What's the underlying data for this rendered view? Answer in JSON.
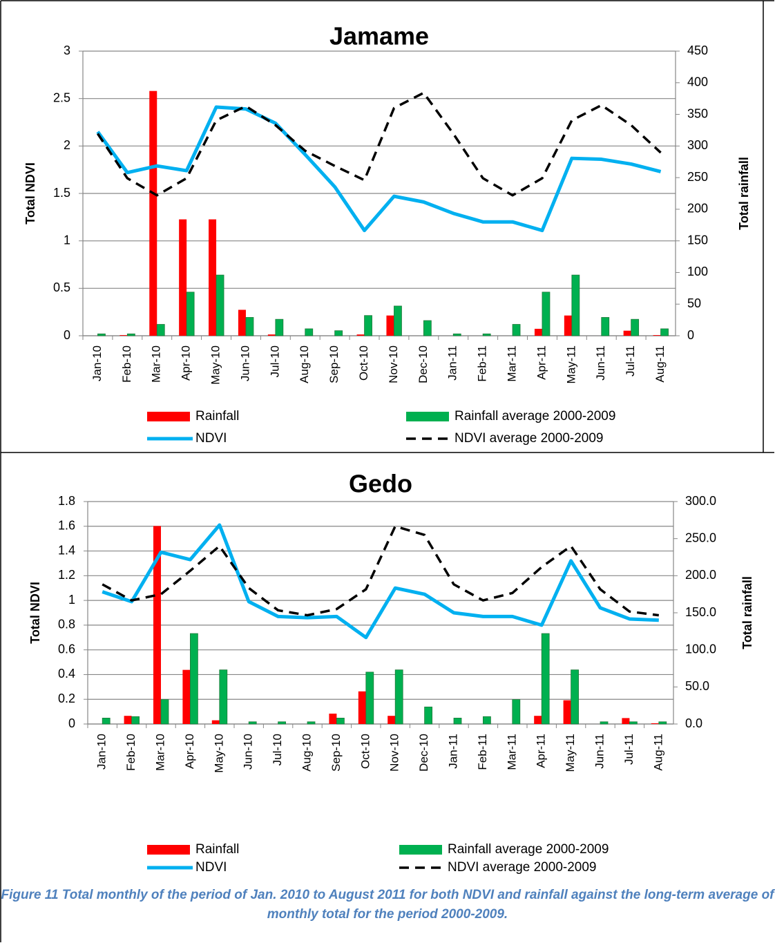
{
  "chart_data": [
    {
      "type": "combo",
      "title": "Jamame",
      "ylabel": "Total NDVI",
      "y2label": "Total rainfall",
      "categories": [
        "Jan-10",
        "Feb-10",
        "Mar-10",
        "Apr-10",
        "May-10",
        "Jun-10",
        "Jul-10",
        "Aug-10",
        "Sep-10",
        "Oct-10",
        "Nov-10",
        "Dec-10",
        "Jan-11",
        "Feb-11",
        "Mar-11",
        "Apr-11",
        "May-11",
        "Jun-11",
        "Jul-11",
        "Aug-11"
      ],
      "ylim": [
        0,
        3
      ],
      "yticks": [
        0,
        0.5,
        1,
        1.5,
        2,
        2.5,
        3
      ],
      "y2lim": [
        0,
        450
      ],
      "y2ticks": [
        0,
        50,
        100,
        150,
        200,
        250,
        300,
        350,
        400,
        450
      ],
      "grid": true,
      "series": [
        {
          "name": "Rainfall",
          "type": "bar",
          "axis": "y2",
          "color": "#ff0000",
          "values": [
            0,
            1,
            387,
            184,
            184,
            41,
            2,
            0,
            0,
            2,
            32,
            0,
            0,
            0,
            0,
            11,
            32,
            0,
            8,
            1
          ]
        },
        {
          "name": "Rainfall average 2000-2009",
          "type": "bar",
          "axis": "y2",
          "color": "#00b050",
          "values": [
            3,
            3,
            18,
            69,
            96,
            29,
            26,
            11,
            8,
            32,
            47,
            24,
            3,
            3,
            18,
            69,
            96,
            29,
            26,
            11
          ]
        },
        {
          "name": "NDVI",
          "type": "line",
          "color": "#00b0f0",
          "values": [
            2.15,
            1.72,
            1.79,
            1.74,
            2.41,
            2.39,
            2.24,
            1.91,
            1.57,
            1.11,
            1.47,
            1.41,
            1.29,
            1.2,
            1.2,
            1.11,
            1.87,
            1.86,
            1.81,
            1.73
          ]
        },
        {
          "name": "NDVI average 2000-2009",
          "type": "line",
          "dash": true,
          "color": "#000000",
          "values": [
            2.13,
            1.66,
            1.48,
            1.66,
            2.27,
            2.42,
            2.22,
            1.95,
            1.79,
            1.64,
            2.4,
            2.56,
            2.13,
            1.66,
            1.48,
            1.66,
            2.27,
            2.43,
            2.22,
            1.93
          ]
        }
      ]
    },
    {
      "type": "combo",
      "title": "Gedo",
      "ylabel": "Total NDVI",
      "y2label": "Total rainfall",
      "categories": [
        "Jan-10",
        "Feb-10",
        "Mar-10",
        "Apr-10",
        "May-10",
        "Jun-10",
        "Jul-10",
        "Aug-10",
        "Sep-10",
        "Oct-10",
        "Nov-10",
        "Dec-10",
        "Jan-11",
        "Feb-11",
        "Mar-11",
        "Apr-11",
        "May-11",
        "Jun-11",
        "Jul-11",
        "Aug-11"
      ],
      "ylim": [
        0,
        1.8
      ],
      "yticks": [
        0,
        0.2,
        0.4,
        0.6,
        0.8,
        1,
        1.2,
        1.4,
        1.6,
        1.8
      ],
      "y2lim": [
        0,
        300
      ],
      "y2ticks": [
        {
          "value": 0,
          "label": "0.0"
        },
        {
          "value": 50,
          "label": "50.0"
        },
        {
          "value": 100,
          "label": "100.0"
        },
        {
          "value": 150,
          "label": "150.0"
        },
        {
          "value": 200,
          "label": "200.0"
        },
        {
          "value": 250,
          "label": "250.0"
        },
        {
          "value": 300,
          "label": "300.0"
        }
      ],
      "grid": true,
      "series": [
        {
          "name": "Rainfall",
          "type": "bar",
          "axis": "y2",
          "color": "#ff0000",
          "values": [
            0,
            11,
            267,
            73,
            5,
            0,
            0,
            0,
            14,
            44,
            11,
            0,
            0,
            0,
            0,
            11,
            32,
            0,
            8,
            1
          ]
        },
        {
          "name": "Rainfall average 2000-2009",
          "type": "bar",
          "axis": "y2",
          "color": "#00b050",
          "values": [
            8,
            10,
            33,
            122,
            73,
            3,
            3,
            3,
            8,
            70,
            73,
            23,
            8,
            10,
            33,
            122,
            73,
            3,
            3,
            3
          ]
        },
        {
          "name": "NDVI",
          "type": "line",
          "color": "#00b0f0",
          "values": [
            1.07,
            0.99,
            1.39,
            1.33,
            1.61,
            0.99,
            0.87,
            0.86,
            0.87,
            0.7,
            1.1,
            1.05,
            0.9,
            0.87,
            0.87,
            0.8,
            1.32,
            0.94,
            0.85,
            0.84
          ]
        },
        {
          "name": "NDVI average 2000-2009",
          "type": "line",
          "dash": true,
          "color": "#000000",
          "values": [
            1.13,
            1.0,
            1.05,
            1.24,
            1.44,
            1.1,
            0.92,
            0.88,
            0.93,
            1.09,
            1.6,
            1.53,
            1.13,
            1.0,
            1.06,
            1.27,
            1.44,
            1.09,
            0.91,
            0.88
          ]
        }
      ]
    }
  ],
  "caption": "Figure 11 Total monthly of the period of Jan. 2010 to August 2011 for both NDVI and rainfall against the long-term average of monthly total for the period 2000-2009."
}
